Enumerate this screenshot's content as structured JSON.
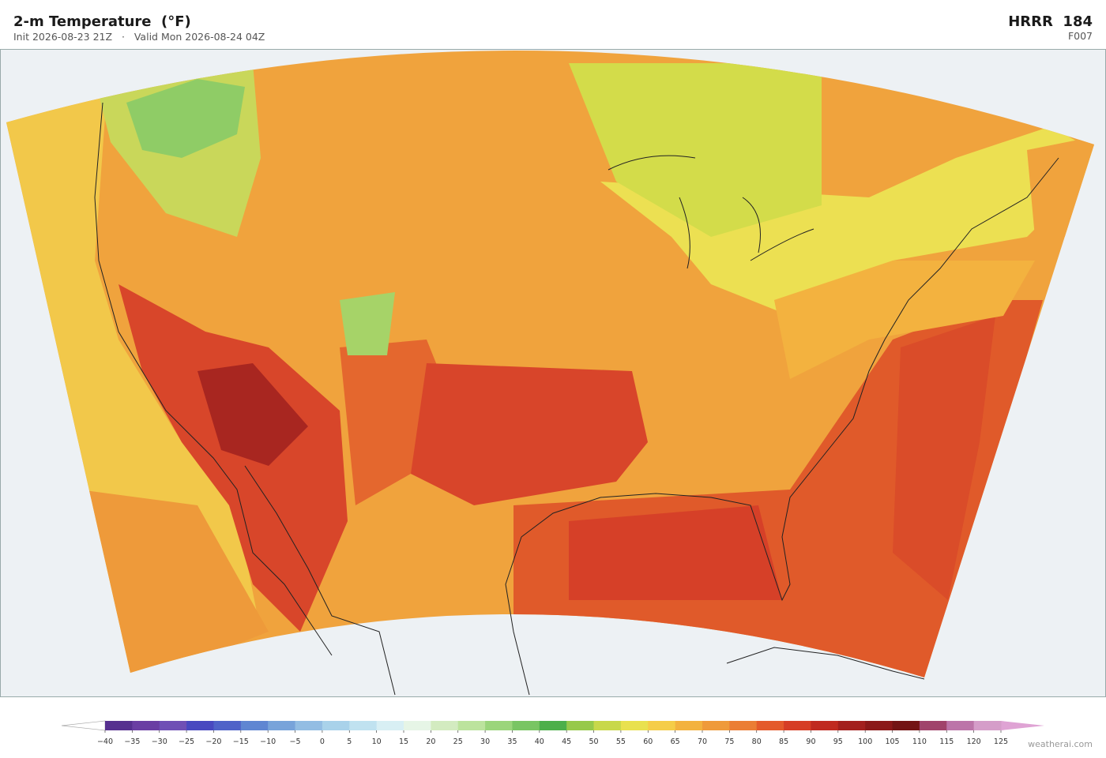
{
  "header": {
    "title": "2-m Temperature  (°F)",
    "subtitle": "Init 2026-08-23 21Z   ·   Valid Mon 2026-08-24 04Z",
    "model": "HRRR  184",
    "forecast_hour": "F007"
  },
  "colorbar": {
    "ticks": [
      "−40",
      "−35",
      "−30",
      "−25",
      "−20",
      "−15",
      "−10",
      "−5",
      "0",
      "5",
      "10",
      "15",
      "20",
      "25",
      "30",
      "35",
      "40",
      "45",
      "50",
      "55",
      "60",
      "65",
      "70",
      "75",
      "80",
      "85",
      "90",
      "95",
      "100",
      "105",
      "110",
      "115",
      "120",
      "125"
    ],
    "colors": [
      "#56308f",
      "#6a3ea3",
      "#6f4fb5",
      "#4848c0",
      "#4f62c8",
      "#5f86d2",
      "#78a3da",
      "#93bde3",
      "#a9d2ea",
      "#c0e2f0",
      "#d8eff4",
      "#e6f5e6",
      "#d3ebc0",
      "#bce39d",
      "#9bd57b",
      "#79c563",
      "#4daf4a",
      "#97c94a",
      "#c8d84a",
      "#e9e14e",
      "#f5cd48",
      "#f3b23f",
      "#ef9a3a",
      "#eb7d34",
      "#e45a2b",
      "#d63d25",
      "#c02a20",
      "#a31f1d",
      "#8b1818",
      "#731414",
      "#a0436b",
      "#bc75a9",
      "#d59dc9"
    ],
    "under_color": "#ffffff",
    "over_color": "#dfa3d4"
  },
  "watermark": "weatherai.com"
}
